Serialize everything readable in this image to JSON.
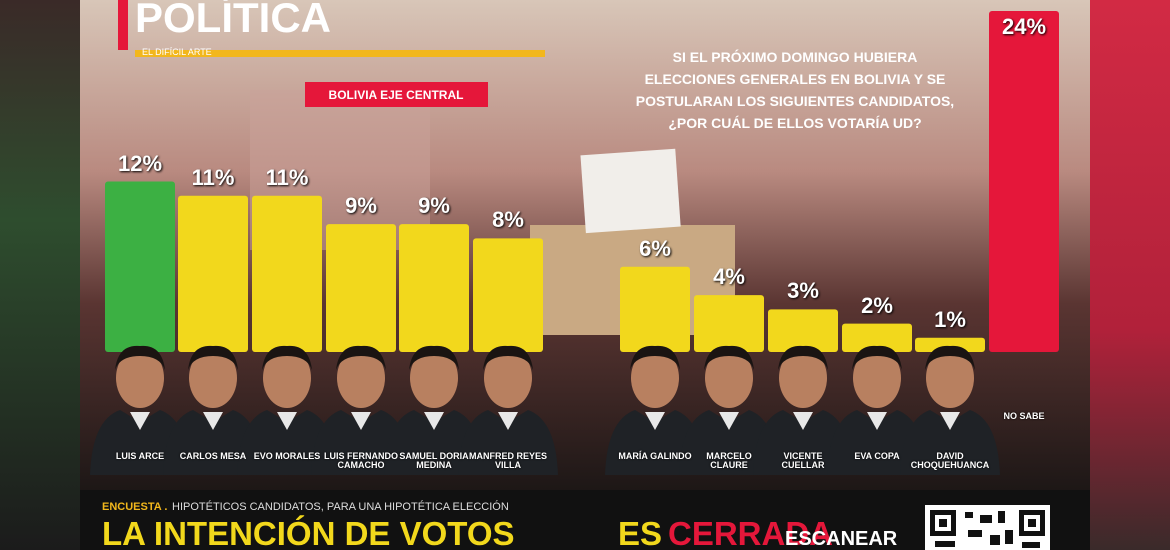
{
  "chart_data": {
    "type": "bar",
    "title": "POLÍTICA",
    "subtitle": "EL DIFÍCIL ARTE",
    "tag": "BOLIVIA EJE CENTRAL",
    "question": [
      "SI EL PRÓXIMO DOMINGO HUBIERA",
      "ELECCIONES GENERALES EN BOLIVIA Y SE",
      "POSTULARAN LOS SIGUIENTES CANDIDATOS,",
      "¿POR CUÁL DE ELLOS VOTARÍA UD?"
    ],
    "categories": [
      "LUIS ARCE",
      "CARLOS MESA",
      "EVO MORALES",
      "LUIS FERNANDO CAMACHO",
      "SAMUEL DORIA MEDINA",
      "MANFRED REYES VILLA",
      "MARÍA GALINDO",
      "MARCELO CLAURE",
      "VICENTE CUELLAR",
      "EVA COPA",
      "DAVID CHOQUEHUANCA",
      "NO SABE"
    ],
    "values": [
      12,
      11,
      11,
      9,
      9,
      8,
      6,
      4,
      3,
      2,
      1,
      24
    ],
    "value_labels": [
      "12%",
      "11%",
      "11%",
      "9%",
      "9%",
      "8%",
      "6%",
      "4%",
      "3%",
      "2%",
      "1%",
      "24%"
    ],
    "colors": [
      "#3cb043",
      "#f2d81c",
      "#f2d81c",
      "#f2d81c",
      "#f2d81c",
      "#f2d81c",
      "#f2d81c",
      "#f2d81c",
      "#f2d81c",
      "#f2d81c",
      "#f2d81c",
      "#e5173a"
    ]
  },
  "footer": {
    "kicker": "ENCUESTA .",
    "note": "HIPOTÉTICOS CANDIDATOS, PARA UNA HIPOTÉTICA ELECCIÓN",
    "headline": "LA INTENCIÓN DE VOTOS",
    "headline2_a": "ES",
    "headline2_b": "CERRADA",
    "scan": "ESCANEAR"
  }
}
